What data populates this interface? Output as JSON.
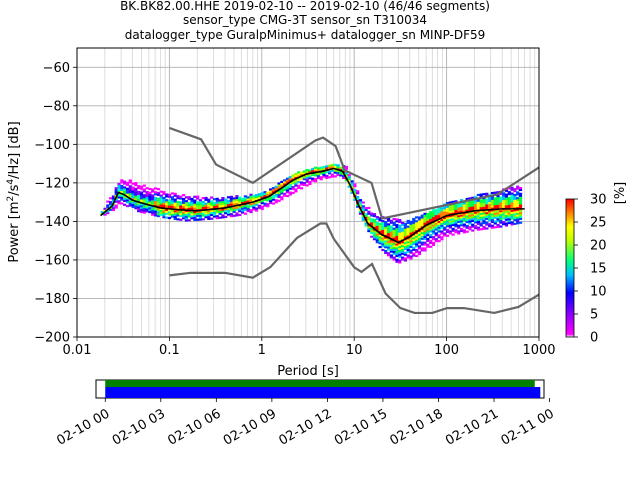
{
  "chart_data": {
    "type": "heatmap",
    "title_lines": [
      "BK.BK82.00.HHE   2019-02-10 -- 2019-02-10  (46/46 segments)",
      "sensor_type CMG-3T sensor_sn T310034",
      "datalogger_type GuralpMinimus+ datalogger_sn MINP-DF59"
    ],
    "xlabel": "Period [s]",
    "ylabel_parts": [
      "Power [m",
      "2",
      "/s",
      "4",
      "/Hz] [dB]"
    ],
    "xscale": "log",
    "xlim": [
      0.01,
      1000
    ],
    "ylim": [
      -200,
      -50
    ],
    "xticks": [
      {
        "v": 0.01,
        "label": "0.01"
      },
      {
        "v": 0.1,
        "label": "0.1"
      },
      {
        "v": 1,
        "label": "1"
      },
      {
        "v": 10,
        "label": "10"
      },
      {
        "v": 100,
        "label": "100"
      },
      {
        "v": 1000,
        "label": "1000"
      }
    ],
    "yticks": [
      {
        "v": -60,
        "label": "−60"
      },
      {
        "v": -80,
        "label": "−80"
      },
      {
        "v": -100,
        "label": "−100"
      },
      {
        "v": -120,
        "label": "−120"
      },
      {
        "v": -140,
        "label": "−140"
      },
      {
        "v": -160,
        "label": "−160"
      },
      {
        "v": -180,
        "label": "−180"
      },
      {
        "v": -200,
        "label": "−200"
      }
    ],
    "grid": true,
    "nhnm": [
      [
        0.1,
        -91.5
      ],
      [
        0.22,
        -97.4
      ],
      [
        0.32,
        -110.5
      ],
      [
        0.8,
        -120
      ],
      [
        3.8,
        -98
      ],
      [
        4.6,
        -96.5
      ],
      [
        6.3,
        -101
      ],
      [
        7.9,
        -113.5
      ],
      [
        15.4,
        -120
      ],
      [
        20,
        -138.5
      ],
      [
        354,
        -126
      ],
      [
        1000,
        -112
      ]
    ],
    "nlnm": [
      [
        0.1,
        -168
      ],
      [
        0.17,
        -166.7
      ],
      [
        0.4,
        -166.7
      ],
      [
        0.8,
        -169.2
      ],
      [
        1.24,
        -163.7
      ],
      [
        2.4,
        -148.6
      ],
      [
        4.3,
        -141.1
      ],
      [
        5,
        -141.1
      ],
      [
        6,
        -149
      ],
      [
        10,
        -163.8
      ],
      [
        12,
        -166.2
      ],
      [
        15.6,
        -162.1
      ],
      [
        21.9,
        -177.5
      ],
      [
        31.6,
        -185
      ],
      [
        45,
        -187.5
      ],
      [
        70,
        -187.5
      ],
      [
        101,
        -185
      ],
      [
        154,
        -185
      ],
      [
        328,
        -187.5
      ],
      [
        600,
        -184.4
      ],
      [
        1000,
        -178
      ]
    ],
    "mode_curve": [
      [
        0.018,
        -137
      ],
      [
        0.024,
        -132
      ],
      [
        0.028,
        -125
      ],
      [
        0.032,
        -126
      ],
      [
        0.04,
        -129
      ],
      [
        0.055,
        -131
      ],
      [
        0.08,
        -133
      ],
      [
        0.13,
        -134
      ],
      [
        0.2,
        -134.5
      ],
      [
        0.4,
        -133
      ],
      [
        0.8,
        -130
      ],
      [
        1.2,
        -127
      ],
      [
        1.6,
        -123
      ],
      [
        2.2,
        -118.5
      ],
      [
        3,
        -115.5
      ],
      [
        4.5,
        -114
      ],
      [
        6,
        -112.5
      ],
      [
        7.5,
        -114
      ],
      [
        9,
        -121
      ],
      [
        11,
        -131
      ],
      [
        14,
        -141
      ],
      [
        20,
        -147
      ],
      [
        25,
        -149
      ],
      [
        30,
        -151
      ],
      [
        40,
        -148
      ],
      [
        60,
        -142
      ],
      [
        100,
        -137
      ],
      [
        200,
        -134.5
      ],
      [
        400,
        -133.5
      ],
      [
        700,
        -133.5
      ]
    ],
    "band_high": [
      [
        0.018,
        -135
      ],
      [
        0.024,
        -127
      ],
      [
        0.03,
        -117
      ],
      [
        0.045,
        -121
      ],
      [
        0.08,
        -124
      ],
      [
        0.15,
        -127
      ],
      [
        0.3,
        -128
      ],
      [
        0.6,
        -127
      ],
      [
        1,
        -126
      ],
      [
        1.5,
        -121
      ],
      [
        2.5,
        -115
      ],
      [
        4,
        -112
      ],
      [
        6,
        -111
      ],
      [
        8,
        -111
      ],
      [
        9.5,
        -118
      ],
      [
        12,
        -129
      ],
      [
        16,
        -136
      ],
      [
        22,
        -138
      ],
      [
        35,
        -140
      ],
      [
        60,
        -136
      ],
      [
        100,
        -131
      ],
      [
        200,
        -127
      ],
      [
        400,
        -124
      ],
      [
        650,
        -121
      ]
    ],
    "band_low": [
      [
        0.018,
        -138
      ],
      [
        0.024,
        -135
      ],
      [
        0.03,
        -131
      ],
      [
        0.045,
        -135
      ],
      [
        0.08,
        -138
      ],
      [
        0.15,
        -140
      ],
      [
        0.3,
        -139
      ],
      [
        0.6,
        -137
      ],
      [
        1,
        -134
      ],
      [
        1.5,
        -130
      ],
      [
        2.5,
        -124
      ],
      [
        4,
        -119
      ],
      [
        6,
        -117
      ],
      [
        8,
        -118
      ],
      [
        9.5,
        -126
      ],
      [
        12,
        -138
      ],
      [
        16,
        -150
      ],
      [
        22,
        -157
      ],
      [
        30,
        -162
      ],
      [
        45,
        -159
      ],
      [
        70,
        -153
      ],
      [
        100,
        -148
      ],
      [
        200,
        -145
      ],
      [
        400,
        -143
      ],
      [
        650,
        -141
      ]
    ],
    "colorbar": {
      "label": "[%]",
      "min": 0,
      "max": 30,
      "ticks": [
        "0",
        "5",
        "10",
        "15",
        "20",
        "25",
        "30"
      ]
    },
    "timeline": {
      "ticks": [
        "02-10 00",
        "02-10 03",
        "02-10 06",
        "02-10 09",
        "02-10 12",
        "02-10 15",
        "02-10 18",
        "02-10 21",
        "02-11 00"
      ],
      "data_coverage_hours": [
        0,
        23.2
      ],
      "psd_coverage_hours": [
        0,
        23.5
      ],
      "range_hours": [
        -0.5,
        23.7
      ],
      "colors": {
        "data": "#008000",
        "psd": "#0000ff"
      }
    }
  }
}
